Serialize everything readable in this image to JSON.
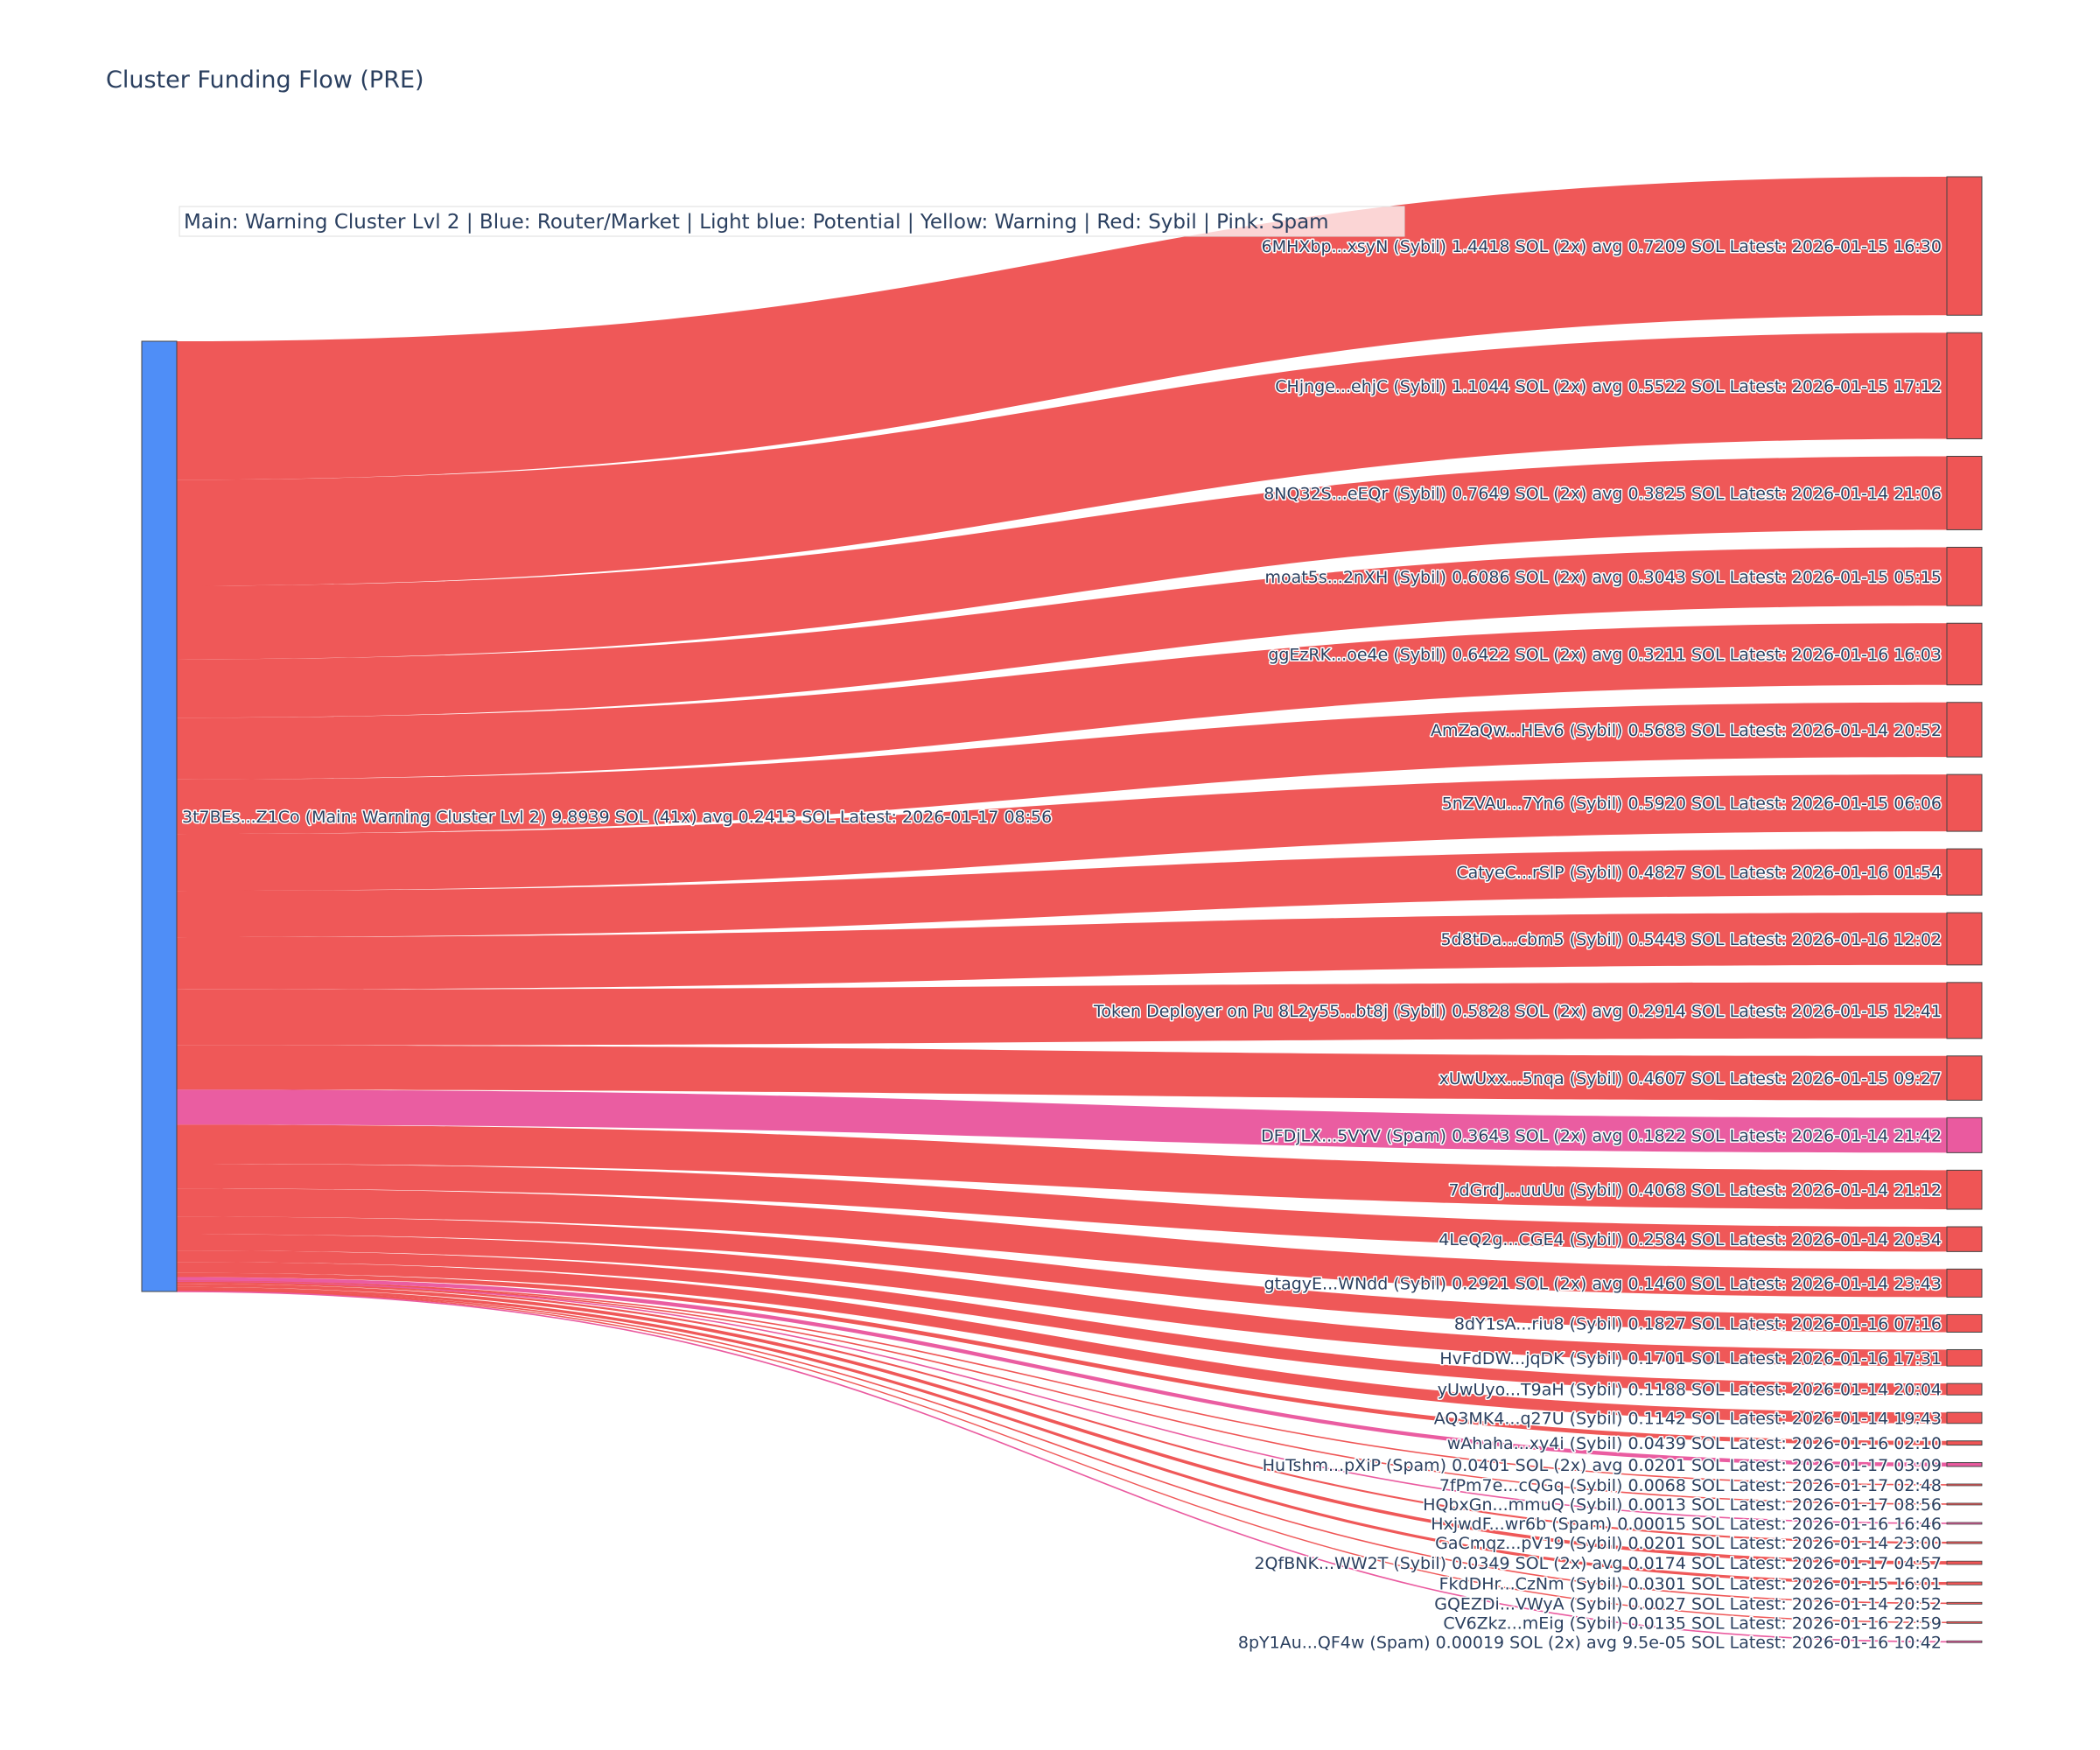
{
  "title": "Cluster Funding Flow (PRE)",
  "legend": "Main: Warning Cluster Lvl 2  |  Blue: Router/Market | Light blue: Potential | Yellow: Warning | Red: Sybil | Pink: Spam",
  "colors": {
    "Main": "#4f8ef7",
    "Sybil": "#ef5555",
    "Spam": "#ea5a9f",
    "node_border": "#444444",
    "text": "#2a3f5f"
  },
  "chart_data": {
    "type": "sankey",
    "source": {
      "id": "3t7BEs...Z1Co",
      "category": "Main",
      "label": "3t7BEs...Z1Co (Main: Warning Cluster Lvl 2) 9.8939 SOL (41x) avg 0.2413 SOL Latest: 2026-01-17 08:56",
      "total_sol": 9.8939,
      "tx_count": 41
    },
    "targets": [
      {
        "label": "6MHXbp...xsyN (Sybil) 1.4418 SOL (2x) avg 0.7209 SOL Latest: 2026-01-15 16:30",
        "category": "Sybil",
        "value": 1.4418
      },
      {
        "label": "CHjnge...ehjC (Sybil) 1.1044 SOL (2x) avg 0.5522 SOL Latest: 2026-01-15 17:12",
        "category": "Sybil",
        "value": 1.1044
      },
      {
        "label": "8NQ32S...eEQr (Sybil) 0.7649 SOL (2x) avg 0.3825 SOL Latest: 2026-01-14 21:06",
        "category": "Sybil",
        "value": 0.7649
      },
      {
        "label": "moat5s...2nXH (Sybil) 0.6086 SOL (2x) avg 0.3043 SOL Latest: 2026-01-15 05:15",
        "category": "Sybil",
        "value": 0.6086
      },
      {
        "label": "ggEzRK...oe4e (Sybil) 0.6422 SOL (2x) avg 0.3211 SOL Latest: 2026-01-16 16:03",
        "category": "Sybil",
        "value": 0.6422
      },
      {
        "label": "AmZaQw...HEv6 (Sybil) 0.5683 SOL Latest: 2026-01-14 20:52",
        "category": "Sybil",
        "value": 0.5683
      },
      {
        "label": "5nZVAu...7Yn6 (Sybil) 0.5920 SOL Latest: 2026-01-15 06:06",
        "category": "Sybil",
        "value": 0.592
      },
      {
        "label": "CatyeC...rSlP (Sybil) 0.4827 SOL Latest: 2026-01-16 01:54",
        "category": "Sybil",
        "value": 0.4827
      },
      {
        "label": "5d8tDa...cbm5 (Sybil) 0.5443 SOL Latest: 2026-01-16 12:02",
        "category": "Sybil",
        "value": 0.5443
      },
      {
        "label": "Token Deployer on Pu 8L2y55...bt8j (Sybil) 0.5828 SOL (2x) avg 0.2914 SOL Latest: 2026-01-15 12:41",
        "category": "Sybil",
        "value": 0.5828
      },
      {
        "label": "xUwUxx...5nqa (Sybil) 0.4607 SOL Latest: 2026-01-15 09:27",
        "category": "Sybil",
        "value": 0.4607
      },
      {
        "label": "DFDjLX...5VYV (Spam) 0.3643 SOL (2x) avg 0.1822 SOL Latest: 2026-01-14 21:42",
        "category": "Spam",
        "value": 0.3643
      },
      {
        "label": "7dGrdJ...uuUu (Sybil) 0.4068 SOL Latest: 2026-01-14 21:12",
        "category": "Sybil",
        "value": 0.4068
      },
      {
        "label": "4LeQ2g...CGE4 (Sybil) 0.2584 SOL Latest: 2026-01-14 20:34",
        "category": "Sybil",
        "value": 0.2584
      },
      {
        "label": "gtagyE...WNdd (Sybil) 0.2921 SOL (2x) avg 0.1460 SOL Latest: 2026-01-14 23:43",
        "category": "Sybil",
        "value": 0.2921
      },
      {
        "label": "8dY1sA...riu8 (Sybil) 0.1827 SOL Latest: 2026-01-16 07:16",
        "category": "Sybil",
        "value": 0.1827
      },
      {
        "label": "HvFdDW...jqDK (Sybil) 0.1701 SOL Latest: 2026-01-16 17:31",
        "category": "Sybil",
        "value": 0.1701
      },
      {
        "label": "yUwUyo...T9aH (Sybil) 0.1188 SOL Latest: 2026-01-14 20:04",
        "category": "Sybil",
        "value": 0.1188
      },
      {
        "label": "AQ3MK4...q27U (Sybil) 0.1142 SOL Latest: 2026-01-14 19:43",
        "category": "Sybil",
        "value": 0.1142
      },
      {
        "label": "wAhaha...xy4i (Sybil) 0.0439 SOL Latest: 2026-01-16 02:10",
        "category": "Sybil",
        "value": 0.0439
      },
      {
        "label": "HuTshm...pXiP (Spam) 0.0401 SOL (2x) avg 0.0201 SOL Latest: 2026-01-17 03:09",
        "category": "Spam",
        "value": 0.0401
      },
      {
        "label": "7fPm7e...cQGq (Sybil) 0.0068 SOL Latest: 2026-01-17 02:48",
        "category": "Sybil",
        "value": 0.0068
      },
      {
        "label": "HQbxGn...mmuQ (Sybil) 0.0013 SOL Latest: 2026-01-17 08:56",
        "category": "Sybil",
        "value": 0.0013
      },
      {
        "label": "HxjwdF...wr6b (Spam) 0.00015 SOL Latest: 2026-01-16 16:46",
        "category": "Spam",
        "value": 0.00015
      },
      {
        "label": "GaCmqz...pV19 (Sybil) 0.0201 SOL Latest: 2026-01-14 23:00",
        "category": "Sybil",
        "value": 0.0201
      },
      {
        "label": "2QfBNK...WW2T (Sybil) 0.0349 SOL (2x) avg 0.0174 SOL Latest: 2026-01-17 04:57",
        "category": "Sybil",
        "value": 0.0349
      },
      {
        "label": "FkdDHr...CzNm (Sybil) 0.0301 SOL Latest: 2026-01-15 16:01",
        "category": "Sybil",
        "value": 0.0301
      },
      {
        "label": "GQEZDi...VWyA (Sybil) 0.0027 SOL Latest: 2026-01-14 20:52",
        "category": "Sybil",
        "value": 0.0027
      },
      {
        "label": "CV6Zkz...mEig (Sybil) 0.0135 SOL Latest: 2026-01-16 22:59",
        "category": "Sybil",
        "value": 0.0135
      },
      {
        "label": "8pY1Au...QF4w (Spam) 0.00019 SOL (2x) avg 9.5e-05 SOL Latest: 2026-01-16 10:42",
        "category": "Spam",
        "value": 0.00019
      }
    ]
  }
}
